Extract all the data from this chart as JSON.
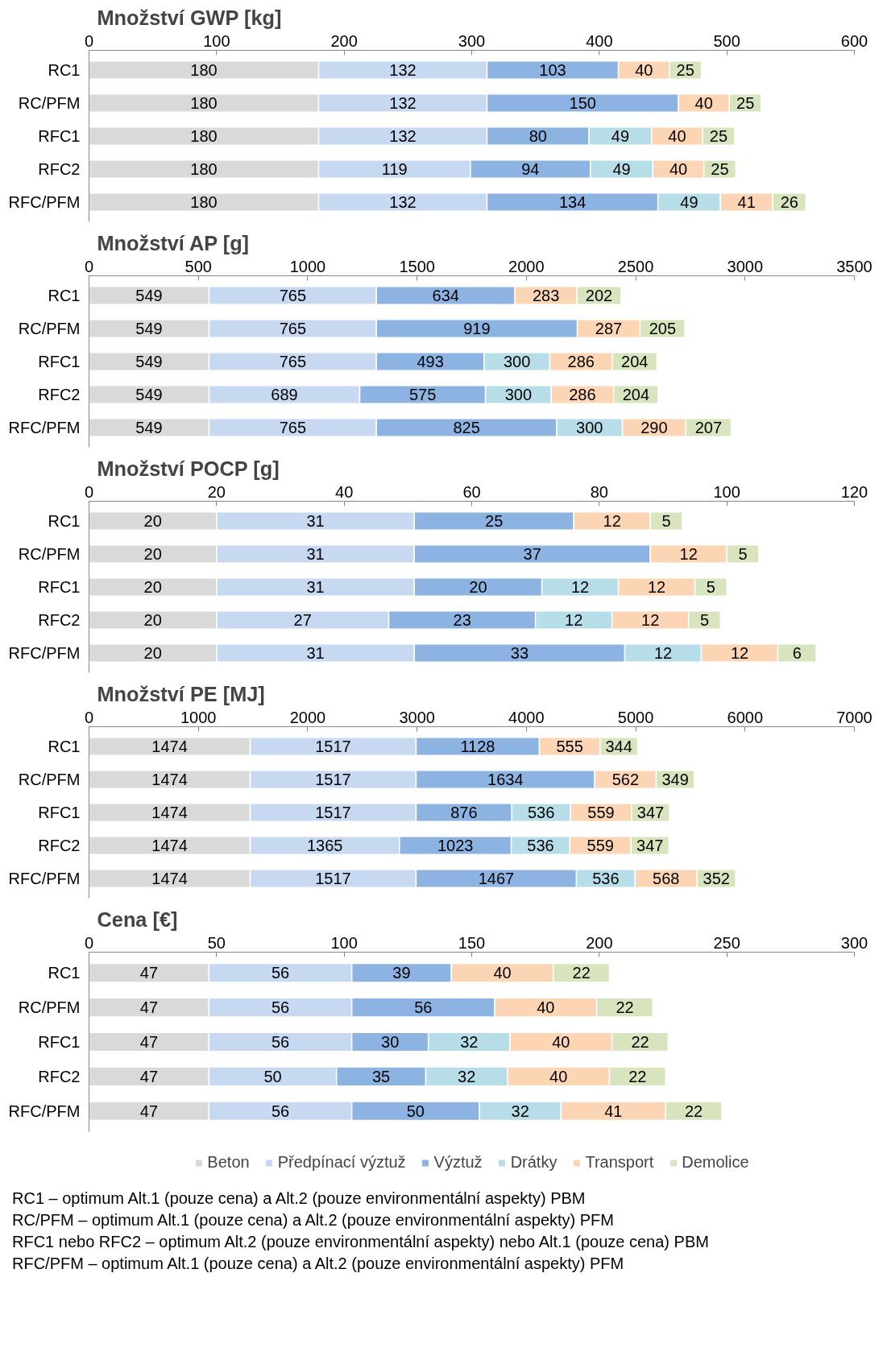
{
  "chart_data": [
    {
      "type": "bar",
      "orientation": "horizontal",
      "stacked": true,
      "data_labels": true,
      "grid": false,
      "title": "Množství GWP [kg]",
      "categories": [
        "RC1",
        "RC/PFM",
        "RFC1",
        "RFC2",
        "RFC/PFM"
      ],
      "xlim": [
        0,
        600
      ],
      "xticks": [
        0,
        100,
        200,
        300,
        400,
        500,
        600
      ],
      "series": [
        {
          "color": "#d9d9d9",
          "values": [
            180,
            180,
            180,
            180,
            180
          ]
        },
        {
          "color": "#c6d9f1",
          "values": [
            132,
            132,
            132,
            119,
            132
          ]
        },
        {
          "color": "#8db3e2",
          "values": [
            103,
            150,
            80,
            94,
            134
          ]
        },
        {
          "color": "#b7dee8",
          "values": [
            null,
            null,
            49,
            49,
            49
          ]
        },
        {
          "color": "#fcd5b5",
          "values": [
            40,
            40,
            40,
            40,
            41
          ]
        },
        {
          "color": "#d7e4bd",
          "values": [
            25,
            25,
            25,
            25,
            26
          ]
        }
      ]
    },
    {
      "type": "bar",
      "orientation": "horizontal",
      "stacked": true,
      "data_labels": true,
      "grid": false,
      "title": "Množství AP [g]",
      "categories": [
        "RC1",
        "RC/PFM",
        "RFC1",
        "RFC2",
        "RFC/PFM"
      ],
      "xlim": [
        0,
        3500
      ],
      "xticks": [
        0,
        500,
        1000,
        1500,
        2000,
        2500,
        3000,
        3500
      ],
      "series": [
        {
          "color": "#d9d9d9",
          "values": [
            549,
            549,
            549,
            549,
            549
          ]
        },
        {
          "color": "#c6d9f1",
          "values": [
            765,
            765,
            765,
            689,
            765
          ]
        },
        {
          "color": "#8db3e2",
          "values": [
            634,
            919,
            493,
            575,
            825
          ]
        },
        {
          "color": "#b7dee8",
          "values": [
            null,
            null,
            300,
            300,
            300
          ]
        },
        {
          "color": "#fcd5b5",
          "values": [
            283,
            287,
            286,
            286,
            290
          ]
        },
        {
          "color": "#d7e4bd",
          "values": [
            202,
            205,
            204,
            204,
            207
          ]
        }
      ]
    },
    {
      "type": "bar",
      "orientation": "horizontal",
      "stacked": true,
      "data_labels": true,
      "grid": false,
      "title": "Množství POCP [g]",
      "categories": [
        "RC1",
        "RC/PFM",
        "RFC1",
        "RFC2",
        "RFC/PFM"
      ],
      "xlim": [
        0,
        120
      ],
      "xticks": [
        0,
        20,
        40,
        60,
        80,
        100,
        120
      ],
      "series": [
        {
          "color": "#d9d9d9",
          "values": [
            20,
            20,
            20,
            20,
            20
          ]
        },
        {
          "color": "#c6d9f1",
          "values": [
            31,
            31,
            31,
            27,
            31
          ]
        },
        {
          "color": "#8db3e2",
          "values": [
            25,
            37,
            20,
            23,
            33
          ]
        },
        {
          "color": "#b7dee8",
          "values": [
            null,
            null,
            12,
            12,
            12
          ]
        },
        {
          "color": "#fcd5b5",
          "values": [
            12,
            12,
            12,
            12,
            12
          ]
        },
        {
          "color": "#d7e4bd",
          "values": [
            5,
            5,
            5,
            5,
            6
          ]
        }
      ]
    },
    {
      "type": "bar",
      "orientation": "horizontal",
      "stacked": true,
      "data_labels": true,
      "grid": false,
      "title": "Množství PE [MJ]",
      "categories": [
        "RC1",
        "RC/PFM",
        "RFC1",
        "RFC2",
        "RFC/PFM"
      ],
      "xlim": [
        0,
        7000
      ],
      "xticks": [
        0,
        1000,
        2000,
        3000,
        4000,
        5000,
        6000,
        7000
      ],
      "series": [
        {
          "color": "#d9d9d9",
          "values": [
            1474,
            1474,
            1474,
            1474,
            1474
          ]
        },
        {
          "color": "#c6d9f1",
          "values": [
            1517,
            1517,
            1517,
            1365,
            1517
          ]
        },
        {
          "color": "#8db3e2",
          "values": [
            1128,
            1634,
            876,
            1023,
            1467
          ]
        },
        {
          "color": "#b7dee8",
          "values": [
            null,
            null,
            536,
            536,
            536
          ]
        },
        {
          "color": "#fcd5b5",
          "values": [
            555,
            562,
            559,
            559,
            568
          ]
        },
        {
          "color": "#d7e4bd",
          "values": [
            344,
            349,
            347,
            347,
            352
          ]
        }
      ]
    },
    {
      "type": "bar",
      "orientation": "horizontal",
      "stacked": true,
      "data_labels": true,
      "grid": false,
      "legend": "bottom",
      "title": "Cena [€]",
      "categories": [
        "RC1",
        "RC/PFM",
        "RFC1",
        "RFC2",
        "RFC/PFM"
      ],
      "xlim": [
        0,
        300
      ],
      "xticks": [
        0,
        50,
        100,
        150,
        200,
        250,
        300
      ],
      "series": [
        {
          "name": "Beton",
          "color": "#d9d9d9",
          "values": [
            47,
            47,
            47,
            47,
            47
          ]
        },
        {
          "name": "Předpínací výztuž",
          "color": "#c6d9f1",
          "values": [
            56,
            56,
            56,
            50,
            56
          ]
        },
        {
          "name": "Výztuž",
          "color": "#8db3e2",
          "values": [
            39,
            56,
            30,
            35,
            50
          ]
        },
        {
          "name": "Drátky",
          "color": "#b7dee8",
          "values": [
            null,
            null,
            32,
            32,
            32
          ]
        },
        {
          "name": "Transport",
          "color": "#fcd5b5",
          "values": [
            40,
            40,
            40,
            40,
            41
          ]
        },
        {
          "name": "Demolice",
          "color": "#d7e4bd",
          "values": [
            22,
            22,
            22,
            22,
            22
          ]
        }
      ],
      "annotations": [
        "RC1 – optimum Alt.1 (pouze cena) a Alt.2 (pouze environmentální aspekty) PBM",
        "RC/PFM – optimum Alt.1 (pouze cena) a Alt.2 (pouze environmentální aspekty) PFM",
        "RFC1 nebo RFC2 – optimum Alt.2 (pouze environmentální aspekty) nebo Alt.1 (pouze cena) PBM",
        "RFC/PFM – optimum Alt.1 (pouze cena) a Alt.2 (pouze environmentální aspekty) PFM"
      ]
    }
  ]
}
